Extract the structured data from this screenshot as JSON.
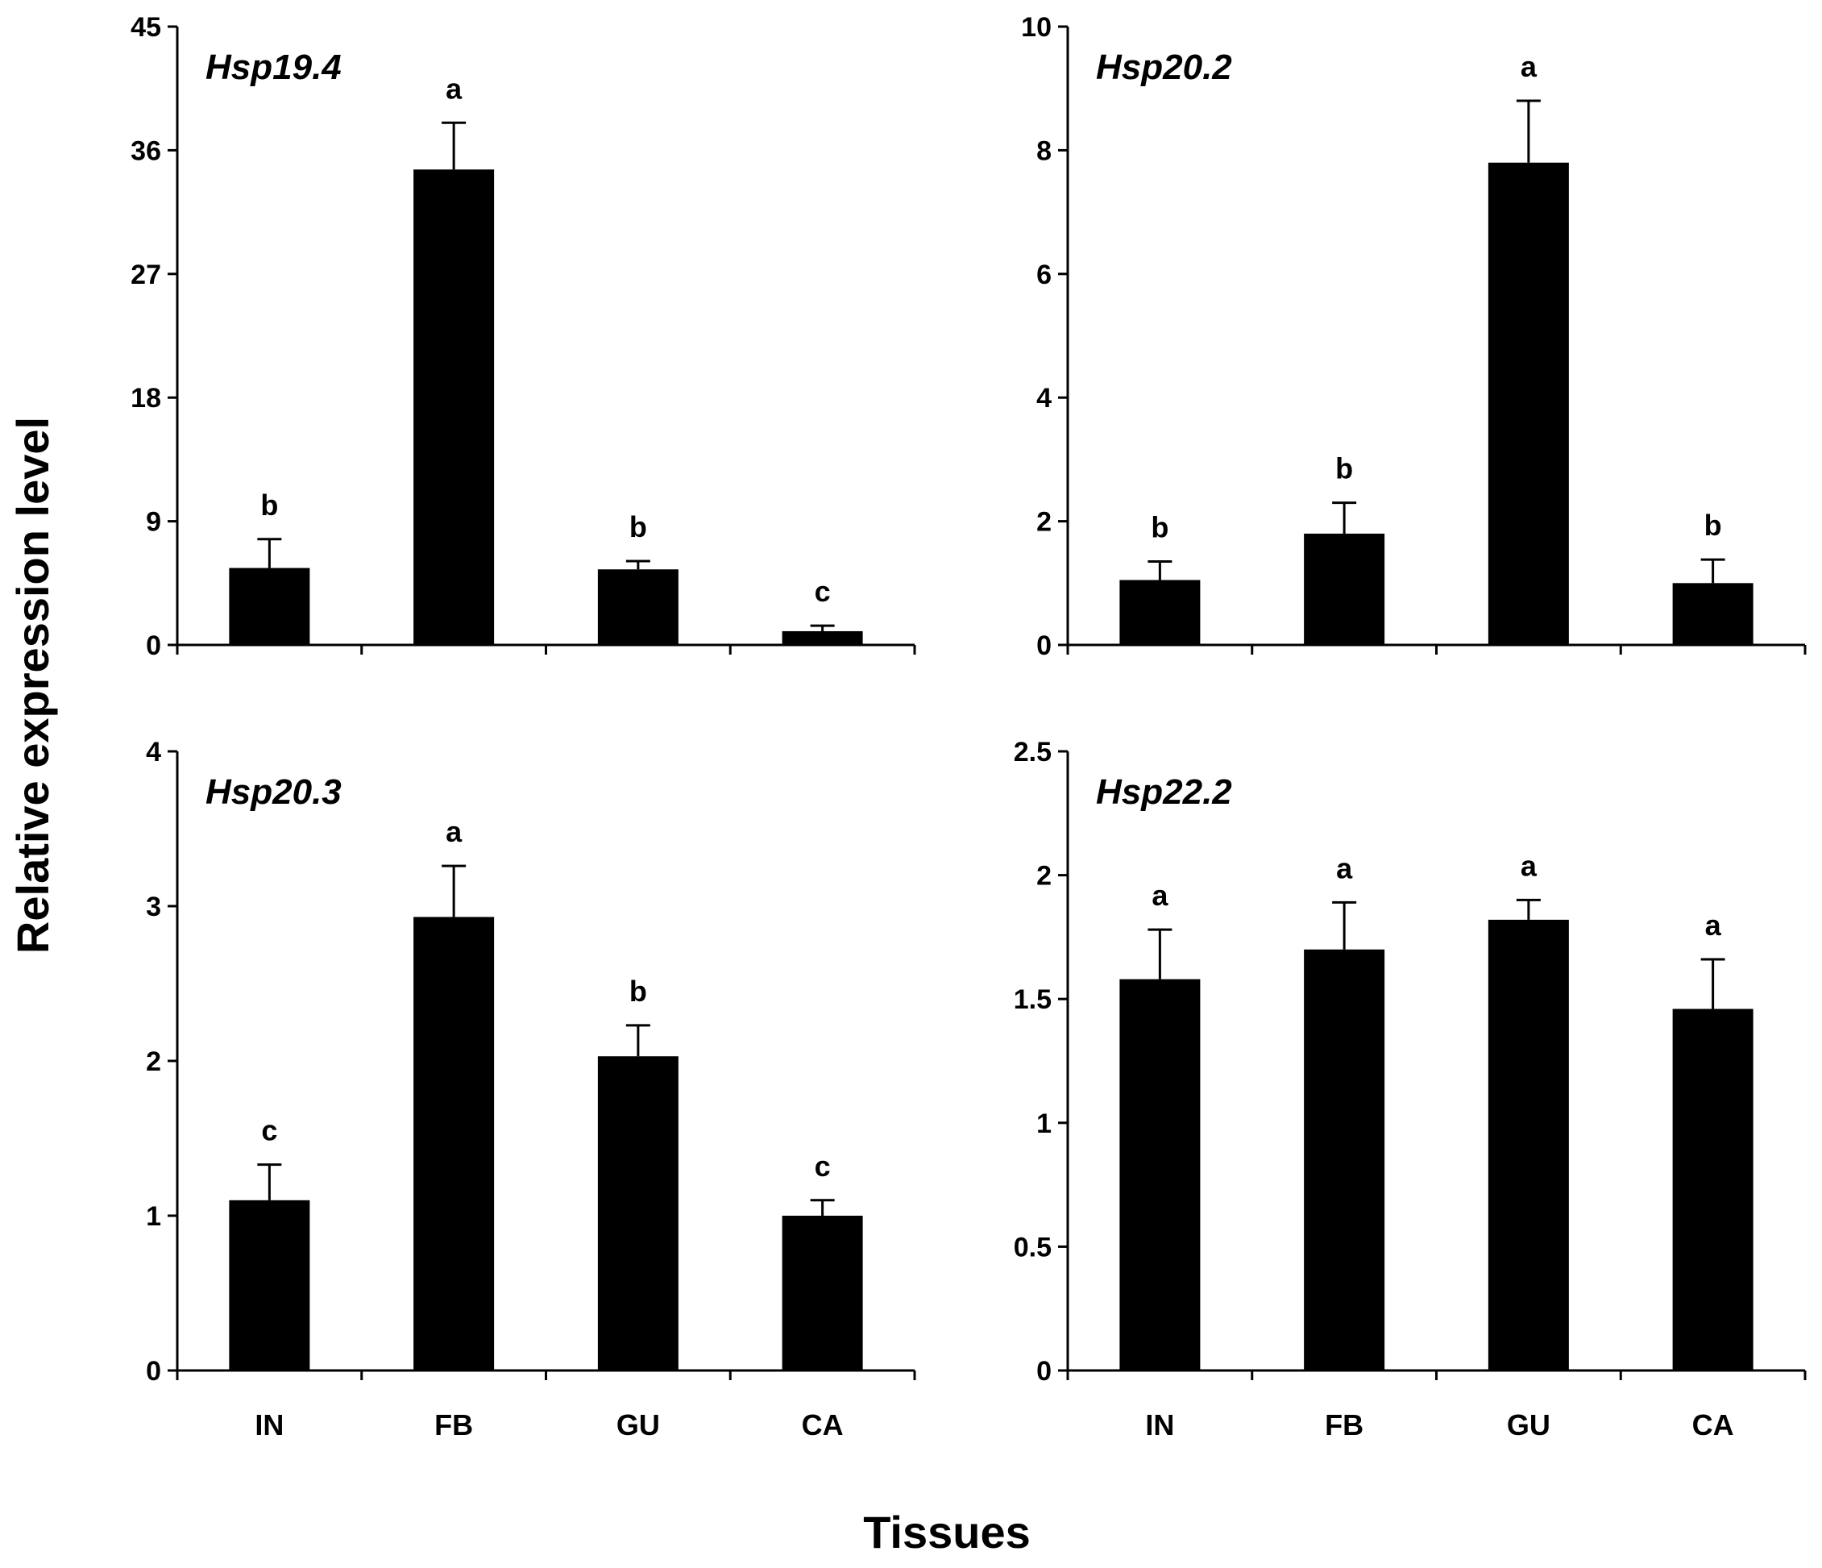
{
  "figure": {
    "ylabel": "Relative expression level",
    "xlabel": "Tissues"
  },
  "colors": {
    "bar": "#000000",
    "axis": "#000000",
    "background": "#ffffff"
  },
  "chart_data": [
    {
      "type": "bar",
      "title": "Hsp19.4",
      "categories": [
        "IN",
        "FB",
        "GU",
        "CA"
      ],
      "show_category_labels": false,
      "values": [
        5.6,
        34.6,
        5.5,
        1.0
      ],
      "errors": [
        2.1,
        3.4,
        0.6,
        0.4
      ],
      "significance": [
        "b",
        "a",
        "b",
        "c"
      ],
      "ylim": [
        0,
        45
      ],
      "yticks": [
        "0",
        "9",
        "18",
        "27",
        "36",
        "45"
      ]
    },
    {
      "type": "bar",
      "title": "Hsp20.2",
      "categories": [
        "IN",
        "FB",
        "GU",
        "CA"
      ],
      "show_category_labels": false,
      "values": [
        1.05,
        1.8,
        7.8,
        1.0
      ],
      "errors": [
        0.3,
        0.5,
        1.0,
        0.38
      ],
      "significance": [
        "b",
        "b",
        "a",
        "b"
      ],
      "ylim": [
        0,
        10
      ],
      "yticks": [
        "0",
        "2",
        "4",
        "6",
        "8",
        "10"
      ]
    },
    {
      "type": "bar",
      "title": "Hsp20.3",
      "categories": [
        "IN",
        "FB",
        "GU",
        "CA"
      ],
      "show_category_labels": true,
      "values": [
        1.1,
        2.93,
        2.03,
        1.0
      ],
      "errors": [
        0.23,
        0.33,
        0.2,
        0.1
      ],
      "significance": [
        "c",
        "a",
        "b",
        "c"
      ],
      "ylim": [
        0,
        4
      ],
      "yticks": [
        "0",
        "1",
        "2",
        "3",
        "4"
      ]
    },
    {
      "type": "bar",
      "title": "Hsp22.2",
      "categories": [
        "IN",
        "FB",
        "GU",
        "CA"
      ],
      "show_category_labels": true,
      "values": [
        1.58,
        1.7,
        1.82,
        1.46
      ],
      "errors": [
        0.2,
        0.19,
        0.08,
        0.2
      ],
      "significance": [
        "a",
        "a",
        "a",
        "a"
      ],
      "ylim": [
        0,
        2.5
      ],
      "yticks": [
        "0",
        "0.5",
        "1",
        "1.5",
        "2",
        "2.5"
      ]
    }
  ]
}
